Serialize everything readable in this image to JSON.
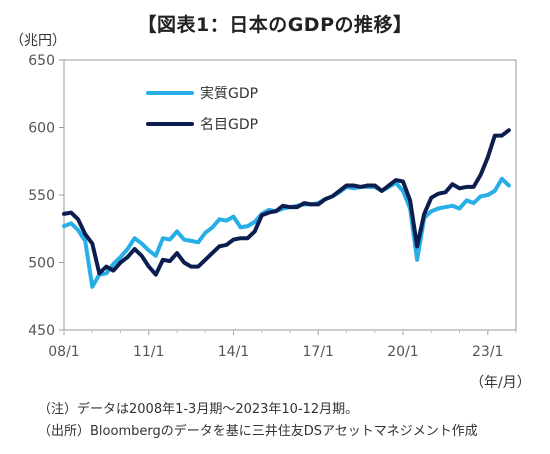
{
  "chart_data": {
    "type": "line",
    "title": "【図表1：日本のGDPの推移】",
    "ylabel": "（兆円）",
    "xlabel": "（年/月）",
    "ylim": [
      450,
      650
    ],
    "yticks": [
      450,
      500,
      550,
      600,
      650
    ],
    "xlim": [
      2008.0,
      2024.0
    ],
    "xticks": [
      {
        "label": "08/1",
        "x": 2008.0
      },
      {
        "label": "11/1",
        "x": 2011.0
      },
      {
        "label": "14/1",
        "x": 2014.0
      },
      {
        "label": "17/1",
        "x": 2017.0
      },
      {
        "label": "20/1",
        "x": 2020.0
      },
      {
        "label": "23/1",
        "x": 2023.0
      }
    ],
    "legend_position": "top-left",
    "grid": false,
    "series": [
      {
        "name": "実質GDP",
        "color": "#27aee6",
        "x": [
          2008.0,
          2008.25,
          2008.5,
          2008.75,
          2009.0,
          2009.25,
          2009.5,
          2009.75,
          2010.0,
          2010.25,
          2010.5,
          2010.75,
          2011.0,
          2011.25,
          2011.5,
          2011.75,
          2012.0,
          2012.25,
          2012.5,
          2012.75,
          2013.0,
          2013.25,
          2013.5,
          2013.75,
          2014.0,
          2014.25,
          2014.5,
          2014.75,
          2015.0,
          2015.25,
          2015.5,
          2015.75,
          2016.0,
          2016.25,
          2016.5,
          2016.75,
          2017.0,
          2017.25,
          2017.5,
          2017.75,
          2018.0,
          2018.25,
          2018.5,
          2018.75,
          2019.0,
          2019.25,
          2019.5,
          2019.75,
          2020.0,
          2020.25,
          2020.5,
          2020.75,
          2021.0,
          2021.25,
          2021.5,
          2021.75,
          2022.0,
          2022.25,
          2022.5,
          2022.75,
          2023.0,
          2023.25,
          2023.5,
          2023.75
        ],
        "values": [
          527,
          529,
          524,
          516,
          482,
          491,
          492,
          499,
          504,
          510,
          518,
          514,
          509,
          505,
          518,
          517,
          523,
          517,
          516,
          515,
          522,
          526,
          532,
          531,
          534,
          526,
          527,
          530,
          536,
          539,
          538,
          540,
          541,
          542,
          543,
          543,
          544,
          547,
          549,
          552,
          556,
          555,
          556,
          556,
          556,
          553,
          556,
          559,
          553,
          540,
          502,
          533,
          538,
          540,
          541,
          542,
          540,
          546,
          544,
          549,
          550,
          553,
          562,
          557
        ]
      },
      {
        "name": "名目GDP",
        "color": "#0c1d4f",
        "x": [
          2008.0,
          2008.25,
          2008.5,
          2008.75,
          2009.0,
          2009.25,
          2009.5,
          2009.75,
          2010.0,
          2010.25,
          2010.5,
          2010.75,
          2011.0,
          2011.25,
          2011.5,
          2011.75,
          2012.0,
          2012.25,
          2012.5,
          2012.75,
          2013.0,
          2013.25,
          2013.5,
          2013.75,
          2014.0,
          2014.25,
          2014.5,
          2014.75,
          2015.0,
          2015.25,
          2015.5,
          2015.75,
          2016.0,
          2016.25,
          2016.5,
          2016.75,
          2017.0,
          2017.25,
          2017.5,
          2017.75,
          2018.0,
          2018.25,
          2018.5,
          2018.75,
          2019.0,
          2019.25,
          2019.5,
          2019.75,
          2020.0,
          2020.25,
          2020.5,
          2020.75,
          2021.0,
          2021.25,
          2021.5,
          2021.75,
          2022.0,
          2022.25,
          2022.5,
          2022.75,
          2023.0,
          2023.25,
          2023.5,
          2023.75
        ],
        "values": [
          536,
          537,
          532,
          521,
          514,
          492,
          497,
          494,
          500,
          504,
          510,
          505,
          497,
          491,
          502,
          501,
          507,
          500,
          497,
          497,
          502,
          507,
          512,
          513,
          517,
          518,
          518,
          523,
          535,
          537,
          538,
          542,
          541,
          541,
          544,
          543,
          543,
          547,
          549,
          553,
          557,
          557,
          556,
          557,
          557,
          553,
          557,
          561,
          560,
          546,
          512,
          536,
          548,
          551,
          552,
          558,
          555,
          556,
          556,
          565,
          578,
          594,
          594,
          598
        ]
      }
    ]
  },
  "notes": [
    "（注）データは2008年1-3月期～2023年10-12月期。",
    "（出所）Bloombergのデータを基に三井住友DSアセットマネジメント作成"
  ]
}
